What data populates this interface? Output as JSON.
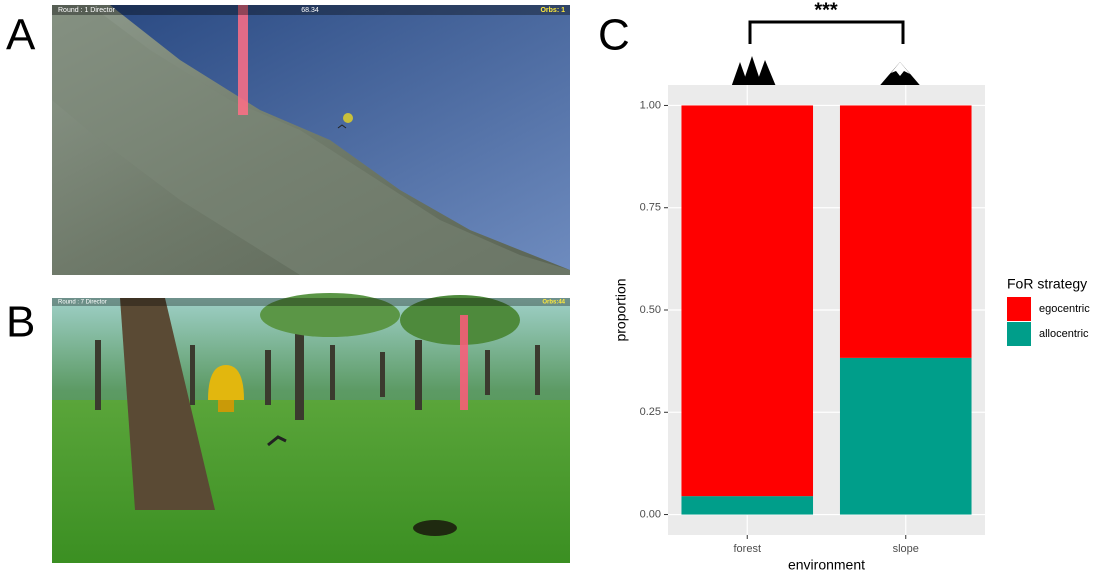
{
  "panels": {
    "A": {
      "label": "A",
      "hud_left": "Round : 1 Director",
      "hud_center": "68.34",
      "hud_right": "Orbs: 1"
    },
    "B": {
      "label": "B",
      "hud_left": "Round : 7 Director",
      "hud_right": "Orbs:44"
    },
    "C": {
      "label": "C",
      "significance": "***"
    }
  },
  "chart_data": {
    "type": "stacked_bar",
    "categories": [
      "forest",
      "slope"
    ],
    "series": [
      {
        "name": "egocentric",
        "color": "#ff0000",
        "values": [
          0.955,
          0.617
        ]
      },
      {
        "name": "allocentric",
        "color": "#009e8a",
        "values": [
          0.045,
          0.383
        ]
      }
    ],
    "x_label": "environment",
    "y_label": "proportion",
    "legend_title": "FoR strategy",
    "ylim": [
      -0.05,
      1.05
    ],
    "yticks": [
      {
        "value": 0,
        "label": "0.00"
      },
      {
        "value": 0.25,
        "label": "0.25"
      },
      {
        "value": 0.5,
        "label": "0.50"
      },
      {
        "value": 0.75,
        "label": "0.75"
      },
      {
        "value": 1,
        "label": "1.00"
      }
    ],
    "grid": true,
    "legend": "right"
  }
}
